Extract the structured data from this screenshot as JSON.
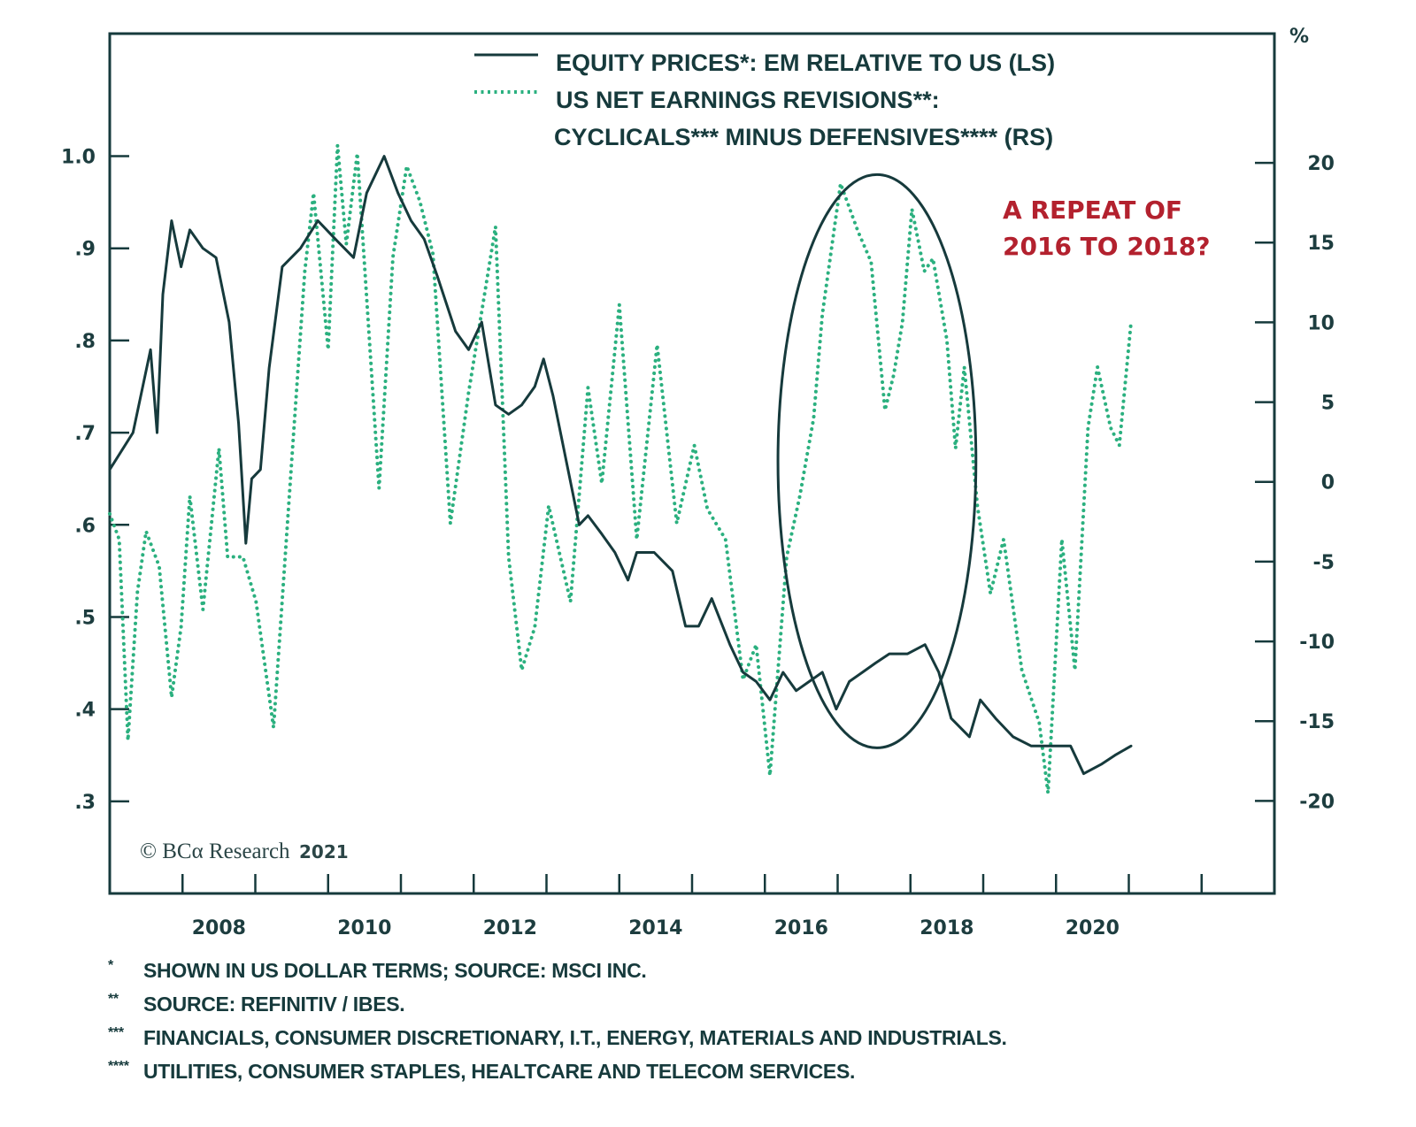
{
  "chart_data": {
    "type": "line",
    "title": "",
    "xlabel": "",
    "ylabel_left": "",
    "ylabel_right": "%",
    "x_range": [
      2007.0,
      2023.0
    ],
    "x_ticks_major_labels": [
      "2008",
      "2010",
      "2012",
      "2014",
      "2016",
      "2018",
      "2020"
    ],
    "x_tick_label_positions": [
      2008.5,
      2010.5,
      2012.5,
      2014.5,
      2016.5,
      2018.5,
      2020.5
    ],
    "x_minor_ticks": [
      2008,
      2009,
      2010,
      2011,
      2012,
      2013,
      2014,
      2015,
      2016,
      2017,
      2018,
      2019,
      2020,
      2021,
      2022
    ],
    "y_left_range": [
      0.2,
      1.133
    ],
    "y_left_ticks": [
      1.0,
      0.9,
      0.8,
      0.7,
      0.6,
      0.5,
      0.4,
      0.3
    ],
    "y_left_tick_labels": [
      "1.0",
      ".9",
      ".8",
      ".7",
      ".6",
      ".5",
      ".4",
      ".3"
    ],
    "y_right_range": [
      -25.8,
      28.1
    ],
    "y_right_ticks": [
      20,
      15,
      10,
      5,
      0,
      -5,
      -10,
      -15,
      -20
    ],
    "y_right_tick_labels": [
      "20",
      "15",
      "10",
      "5",
      "0",
      "-5",
      "-10",
      "-15",
      "-20"
    ],
    "grid": false,
    "legend_position": "top-center",
    "series": [
      {
        "name": "EQUITY PRICES*: EM RELATIVE TO US (LS)",
        "axis": "left",
        "style": "solid",
        "color": "#163a3c",
        "x": [
          2007.0,
          2007.32,
          2007.56,
          2007.65,
          2007.73,
          2007.85,
          2007.98,
          2008.1,
          2008.28,
          2008.46,
          2008.64,
          2008.77,
          2008.87,
          2008.95,
          2009.07,
          2009.19,
          2009.37,
          2009.62,
          2009.86,
          2010.1,
          2010.35,
          2010.53,
          2010.77,
          2010.96,
          2011.14,
          2011.32,
          2011.5,
          2011.75,
          2011.93,
          2012.11,
          2012.3,
          2012.48,
          2012.66,
          2012.84,
          2012.96,
          2013.09,
          2013.27,
          2013.45,
          2013.57,
          2013.76,
          2013.94,
          2014.12,
          2014.24,
          2014.48,
          2014.73,
          2014.91,
          2015.09,
          2015.27,
          2015.52,
          2015.7,
          2015.88,
          2016.07,
          2016.25,
          2016.43,
          2016.61,
          2016.79,
          2016.98,
          2017.16,
          2017.34,
          2017.52,
          2017.71,
          2017.96,
          2018.2,
          2018.39,
          2018.56,
          2018.81,
          2018.96,
          2019.17,
          2019.41,
          2019.66,
          2019.96,
          2020.2,
          2020.38,
          2020.62,
          2020.81,
          2021.03
        ],
        "y": [
          0.66,
          0.7,
          0.79,
          0.7,
          0.85,
          0.93,
          0.88,
          0.92,
          0.9,
          0.89,
          0.82,
          0.71,
          0.58,
          0.65,
          0.66,
          0.77,
          0.88,
          0.9,
          0.93,
          0.91,
          0.89,
          0.96,
          1.0,
          0.96,
          0.93,
          0.91,
          0.87,
          0.81,
          0.79,
          0.82,
          0.73,
          0.72,
          0.73,
          0.75,
          0.78,
          0.74,
          0.67,
          0.6,
          0.61,
          0.59,
          0.57,
          0.54,
          0.57,
          0.57,
          0.55,
          0.49,
          0.49,
          0.52,
          0.47,
          0.44,
          0.43,
          0.41,
          0.44,
          0.42,
          0.43,
          0.44,
          0.4,
          0.43,
          0.44,
          0.45,
          0.46,
          0.46,
          0.47,
          0.44,
          0.39,
          0.37,
          0.41,
          0.39,
          0.37,
          0.36,
          0.36,
          0.36,
          0.33,
          0.34,
          0.35,
          0.36
        ]
      },
      {
        "name": "US NET EARNINGS REVISIONS**: CYCLICALS*** MINUS DEFENSIVES**** (RS)",
        "axis": "right",
        "style": "dotted",
        "color": "#2bb07f",
        "x": [
          2007.0,
          2007.13,
          2007.25,
          2007.38,
          2007.5,
          2007.68,
          2007.85,
          2007.98,
          2008.1,
          2008.28,
          2008.5,
          2008.62,
          2008.83,
          2009.01,
          2009.25,
          2009.5,
          2009.68,
          2009.8,
          2010.0,
          2010.13,
          2010.25,
          2010.4,
          2010.7,
          2010.89,
          2011.08,
          2011.26,
          2011.44,
          2011.68,
          2011.93,
          2012.3,
          2012.48,
          2012.66,
          2012.84,
          2013.03,
          2013.33,
          2013.57,
          2013.76,
          2014.0,
          2014.24,
          2014.52,
          2014.79,
          2015.03,
          2015.21,
          2015.46,
          2015.7,
          2015.88,
          2016.07,
          2016.3,
          2016.48,
          2016.67,
          2016.79,
          2017.04,
          2017.28,
          2017.46,
          2017.65,
          2017.77,
          2017.89,
          2018.02,
          2018.19,
          2018.31,
          2018.5,
          2018.62,
          2018.74,
          2018.92,
          2019.1,
          2019.28,
          2019.53,
          2019.77,
          2019.89,
          2020.08,
          2020.26,
          2020.44,
          2020.57,
          2020.75,
          2020.87,
          2021.03
        ],
        "y": [
          -2.0,
          -3.6,
          -16.2,
          -6.9,
          -3.1,
          -5.3,
          -13.5,
          -9.1,
          -0.9,
          -8.0,
          2.1,
          -4.7,
          -4.7,
          -7.5,
          -15.4,
          1.3,
          13.2,
          18.1,
          8.3,
          21.1,
          14.9,
          20.6,
          -0.4,
          14.1,
          19.8,
          17.6,
          14.3,
          -2.6,
          5.6,
          16.0,
          -4.7,
          -11.8,
          -9.1,
          -1.5,
          -7.5,
          5.9,
          -0.1,
          11.1,
          -3.6,
          8.6,
          -2.6,
          2.3,
          -1.7,
          -3.6,
          -12.4,
          -10.2,
          -18.4,
          -4.7,
          -0.9,
          4.0,
          10.5,
          18.7,
          15.7,
          13.8,
          4.5,
          6.7,
          10.0,
          17.1,
          13.2,
          14.0,
          8.9,
          2.1,
          7.2,
          -1.5,
          -7.0,
          -3.6,
          -11.8,
          -15.1,
          -19.5,
          -3.6,
          -11.8,
          3.4,
          7.2,
          3.4,
          2.3,
          10.0
        ]
      }
    ],
    "annotations": [
      {
        "type": "ellipse",
        "label": "highlight 2016-2018 period",
        "x_center": 2017.54,
        "x_halfwidth": 1.36,
        "y_left_top": 0.98,
        "y_left_bottom": 0.358
      },
      {
        "type": "text",
        "lines": [
          "A REPEAT OF",
          "2016 TO 2018?"
        ],
        "color": "#b3212e"
      }
    ],
    "legend": [
      {
        "label": "EQUITY PRICES*: EM RELATIVE TO US (LS)",
        "style": "solid"
      },
      {
        "label_lines": [
          "US NET EARNINGS REVISIONS**:",
          "CYCLICALS*** MINUS DEFENSIVES**** (RS)"
        ],
        "style": "dotted"
      }
    ]
  },
  "right_axis_unit": "%",
  "copyright": {
    "text": "© BCα Research",
    "year": "2021"
  },
  "footnotes": [
    {
      "mark": "*",
      "text": "SHOWN IN US DOLLAR TERMS; SOURCE: MSCI INC."
    },
    {
      "mark": "**",
      "text": "SOURCE: REFINITIV / IBES."
    },
    {
      "mark": "***",
      "text": "FINANCIALS, CONSUMER DISCRETIONARY, I.T., ENERGY, MATERIALS AND INDUSTRIALS."
    },
    {
      "mark": "****",
      "text": "UTILITIES, CONSUMER STAPLES, HEALTCARE AND TELECOM SERVICES."
    }
  ],
  "colors": {
    "frame": "#163a3c",
    "em_line": "#163a3c",
    "revisions_line": "#2bb07f",
    "annotation": "#b3212e"
  }
}
